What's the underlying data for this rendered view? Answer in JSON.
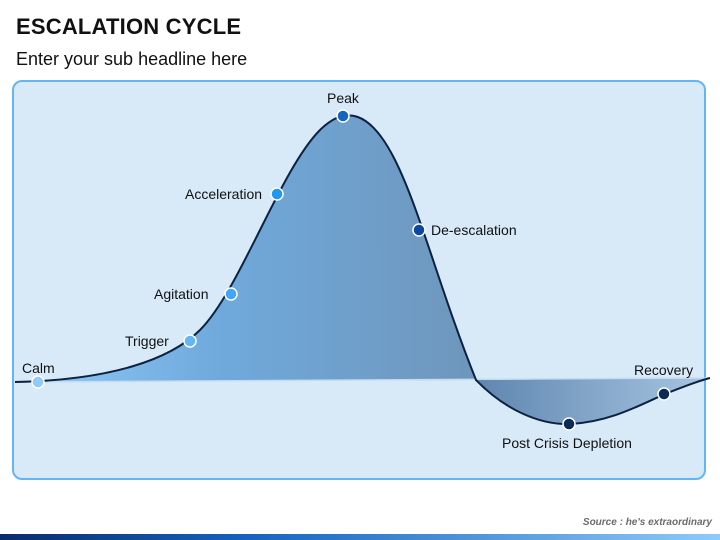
{
  "header": {
    "title": "ESCALATION CYCLE",
    "subtitle": "Enter your sub headline here"
  },
  "stages": [
    {
      "label": "Calm",
      "color": "#90caf9"
    },
    {
      "label": "Trigger",
      "color": "#64b5f6"
    },
    {
      "label": "Agitation",
      "color": "#42a5f5"
    },
    {
      "label": "Acceleration",
      "color": "#2196f3"
    },
    {
      "label": "Peak",
      "color": "#1565c0"
    },
    {
      "label": "De-escalation",
      "color": "#0d47a1"
    },
    {
      "label": "Post Crisis Depletion",
      "color": "#0b2a55"
    },
    {
      "label": "Recovery",
      "color": "#0b2a55"
    }
  ],
  "footer": {
    "source": "Source : he's extraordinary"
  },
  "colors": {
    "panel_border": "#64b5f6",
    "panel_fill": "#d8e9f8",
    "curve": "#0d2240"
  }
}
